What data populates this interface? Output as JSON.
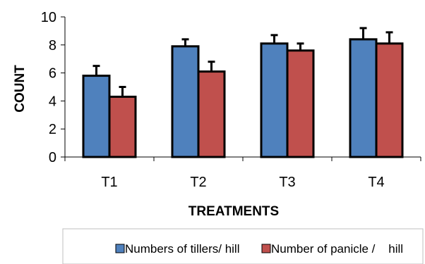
{
  "chart_data": {
    "type": "bar",
    "xlabel": "TREATMENTS",
    "ylabel": "COUNT",
    "categories": [
      "T1",
      "T2",
      "T3",
      "T4"
    ],
    "ylim": [
      0,
      10
    ],
    "yticks": [
      0,
      2,
      4,
      6,
      8,
      10
    ],
    "grid": false,
    "legend_position": "bottom",
    "series": [
      {
        "name": "Numbers of tillers/ hill",
        "color": "#4F81BD",
        "values": [
          5.8,
          7.9,
          8.1,
          8.4
        ],
        "errors": [
          0.7,
          0.5,
          0.6,
          0.8
        ]
      },
      {
        "name": "Number of panicle /    hill",
        "color": "#C0504D",
        "values": [
          4.3,
          6.1,
          7.6,
          8.1
        ],
        "errors": [
          0.7,
          0.7,
          0.5,
          0.8
        ]
      }
    ]
  }
}
